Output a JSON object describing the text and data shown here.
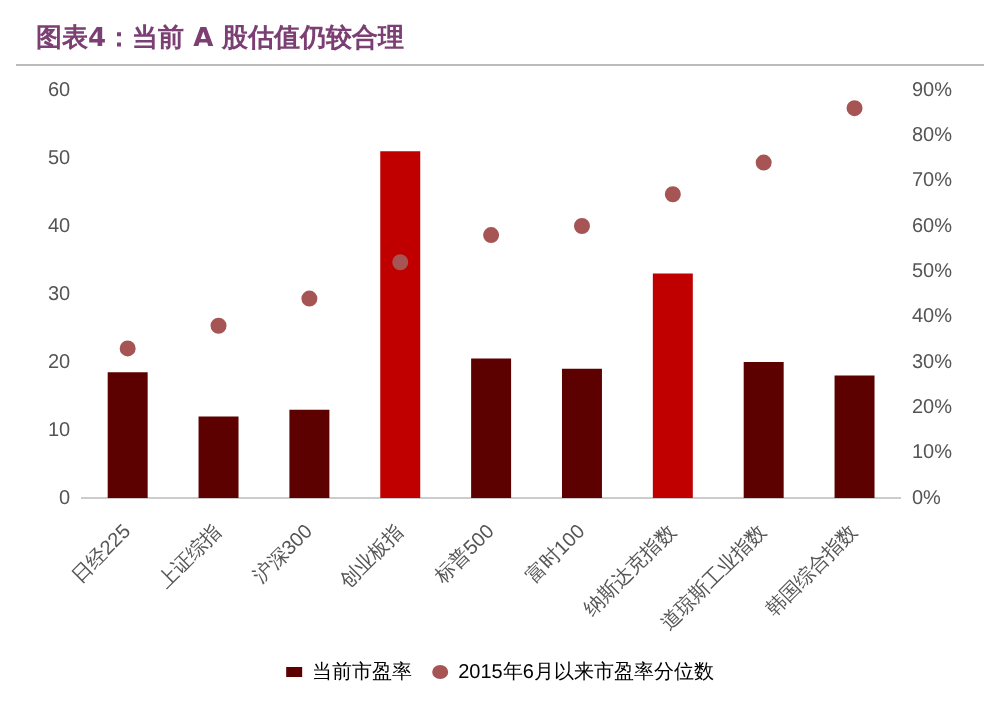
{
  "chart_data": {
    "type": "bar",
    "title": "图表4：当前 A 股估值仍较合理",
    "categories": [
      "日经225",
      "上证综指",
      "沪深300",
      "创业板指",
      "标普500",
      "富时100",
      "纳斯达克指数",
      "道琼斯工业指数",
      "韩国综合指数"
    ],
    "series": [
      {
        "name": "当前市盈率",
        "colors": [
          "#5c0000",
          "#5c0000",
          "#5c0000",
          "#c00000",
          "#5c0000",
          "#5c0000",
          "#c00000",
          "#5c0000",
          "#5c0000"
        ],
        "values": [
          18.5,
          12,
          13,
          51,
          20.5,
          19,
          33,
          20,
          18
        ]
      },
      {
        "name": "2015年6月以来市盈率分位数",
        "type": "scatter",
        "axis": "y2",
        "color": "#a65454",
        "values": [
          33,
          38,
          44,
          52,
          58,
          60,
          67,
          74,
          86
        ]
      }
    ],
    "ylim": [
      0,
      60
    ],
    "yticks": [
      0,
      10,
      20,
      30,
      40,
      50,
      60
    ],
    "y2lim": [
      0,
      90
    ],
    "y2ticks": [
      {
        "value": 0,
        "label": "0%"
      },
      {
        "value": 10,
        "label": "10%"
      },
      {
        "value": 20,
        "label": "20%"
      },
      {
        "value": 30,
        "label": "30%"
      },
      {
        "value": 40,
        "label": "40%"
      },
      {
        "value": 50,
        "label": "50%"
      },
      {
        "value": 60,
        "label": "60%"
      },
      {
        "value": 70,
        "label": "70%"
      },
      {
        "value": 80,
        "label": "80%"
      },
      {
        "value": 90,
        "label": "90%"
      }
    ],
    "grid": false,
    "legend": "bottom",
    "marker": "circle"
  }
}
